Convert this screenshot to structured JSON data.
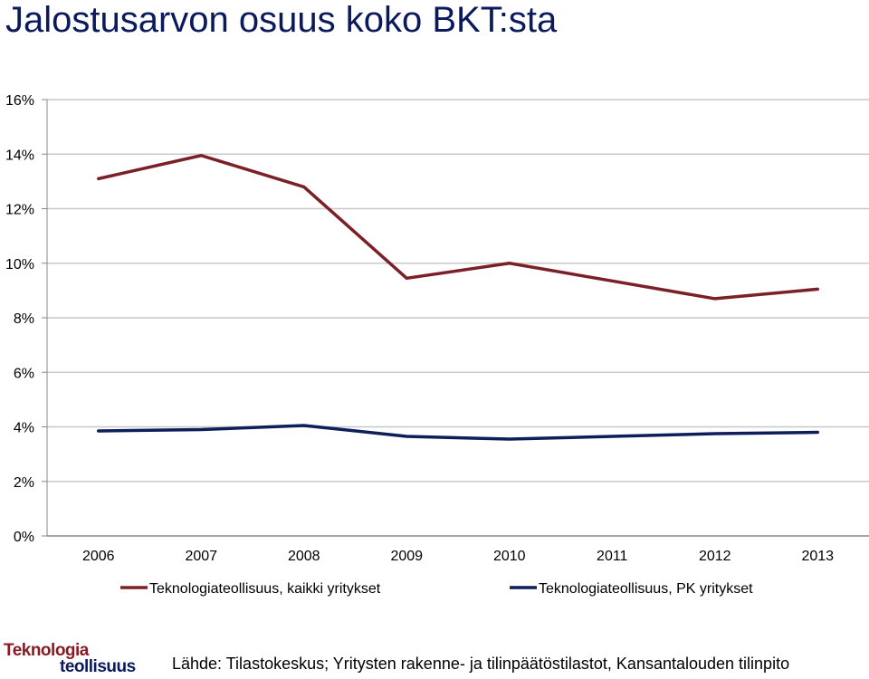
{
  "title": "Jalostusarvon osuus koko BKT:sta",
  "source": "Lähde: Tilastokeskus; Yritysten rakenne- ja tilinpäätöstilastot, Kansantalouden tilinpito",
  "logo": {
    "line1": "Teknologia",
    "line2": "teollisuus"
  },
  "colors": {
    "series1": "#7b2027",
    "series2": "#0d1f5a",
    "grid": "#c8c8c8"
  },
  "chart_data": {
    "type": "line",
    "title": "Jalostusarvon osuus koko BKT:sta",
    "xlabel": "",
    "ylabel": "",
    "x": [
      "2006",
      "2007",
      "2008",
      "2009",
      "2010",
      "2011",
      "2012",
      "2013"
    ],
    "ylim": [
      0,
      16
    ],
    "yticks": [
      "0%",
      "2%",
      "4%",
      "6%",
      "8%",
      "10%",
      "12%",
      "14%",
      "16%"
    ],
    "grid": true,
    "legend_position": "bottom",
    "series": [
      {
        "name": "Teknologiateollisuus, kaikki yritykset",
        "color": "#7b2027",
        "values": [
          13.1,
          13.95,
          12.8,
          9.45,
          10.0,
          9.35,
          8.7,
          9.05
        ]
      },
      {
        "name": "Teknologiateollisuus, PK yritykset",
        "color": "#0d1f5a",
        "values": [
          3.85,
          3.9,
          4.05,
          3.65,
          3.55,
          3.65,
          3.75,
          3.8
        ]
      }
    ]
  }
}
